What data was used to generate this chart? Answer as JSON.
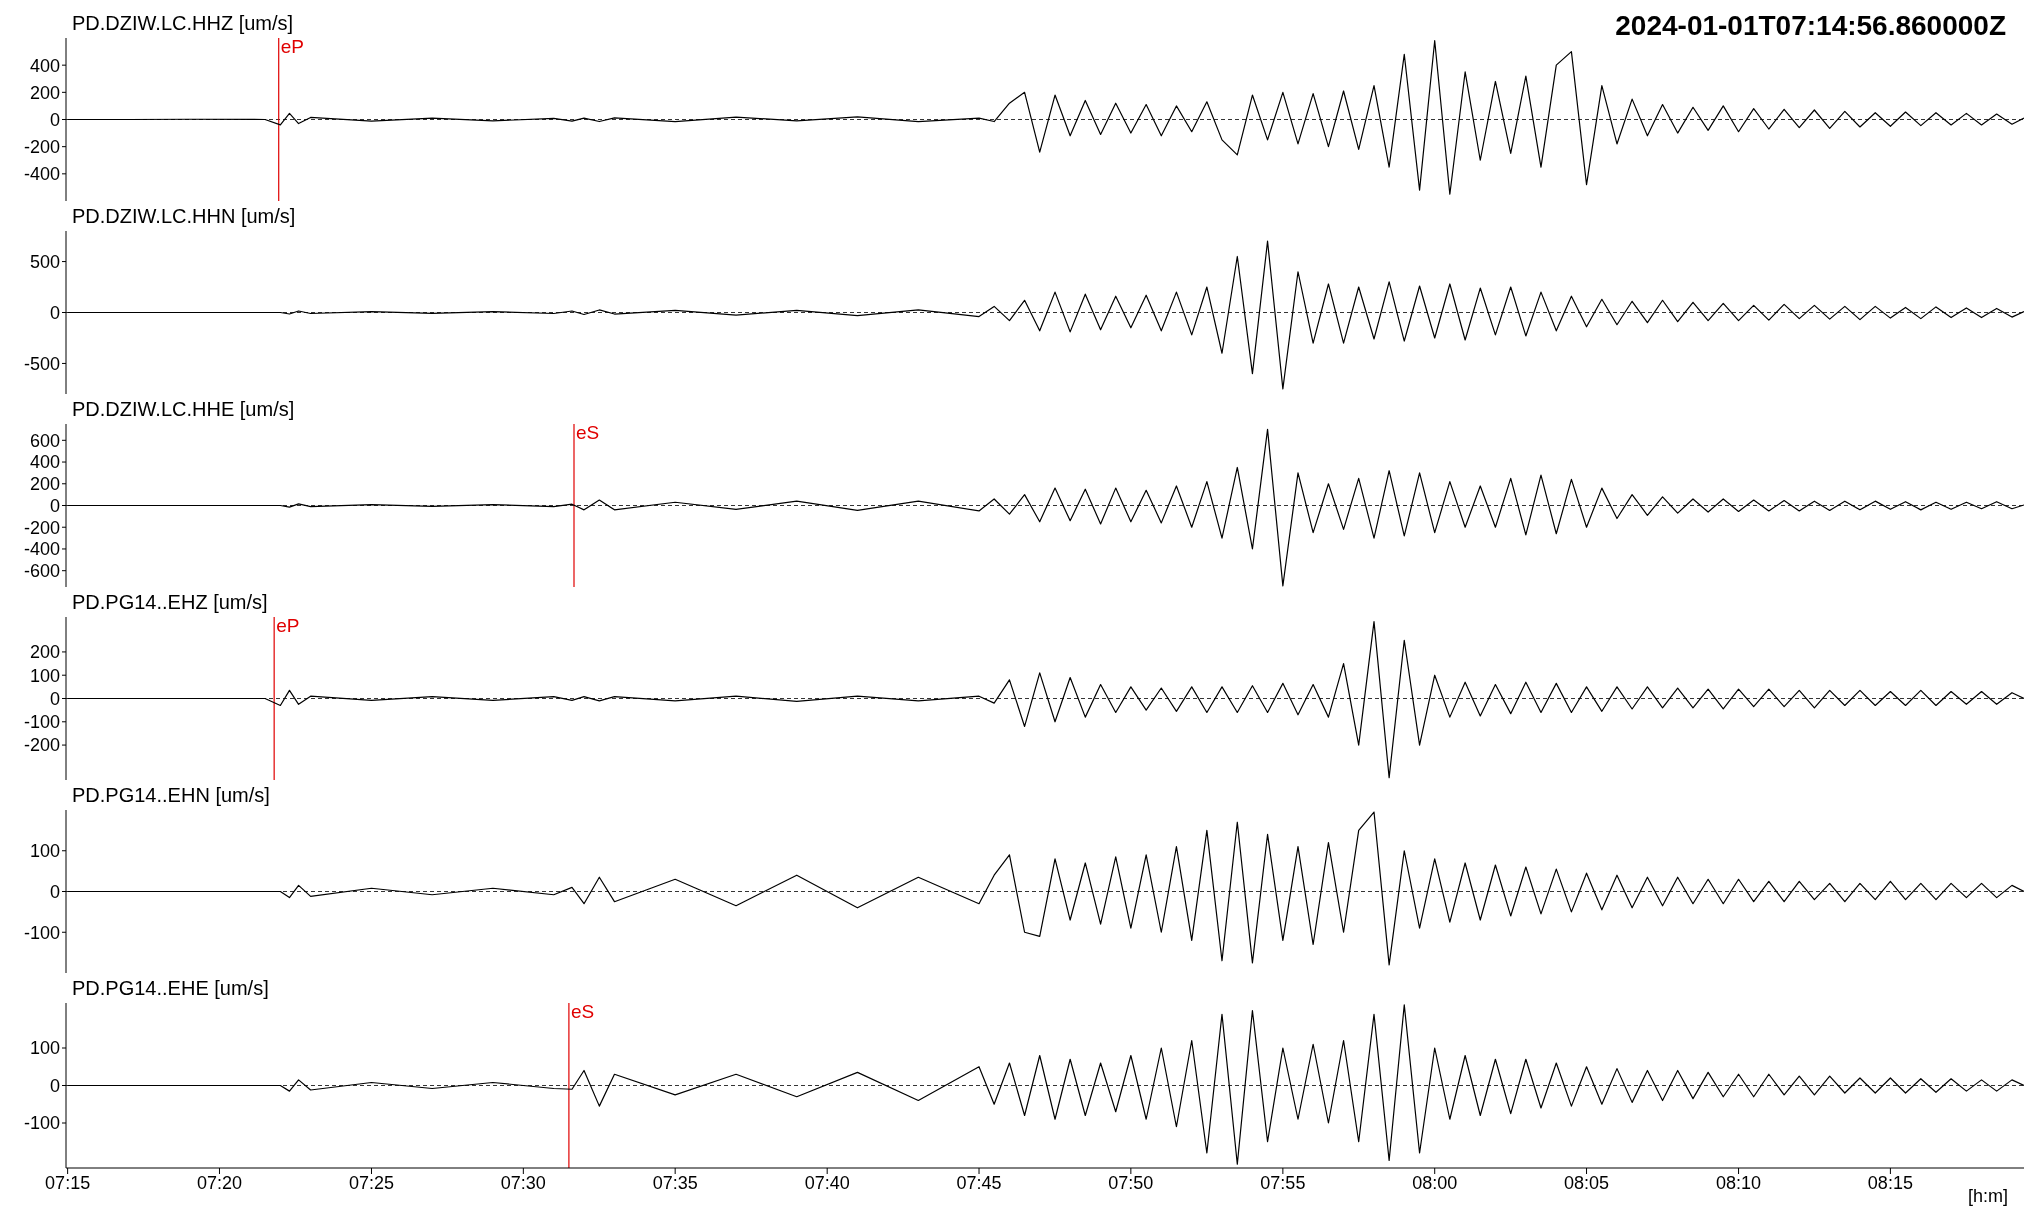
{
  "chart_data": [
    {
      "type": "line",
      "title": "PD.DZIW.LC.HHZ [um/s]",
      "annotations": [
        "2024-01-01T07:14:56.860000Z"
      ],
      "tick_labels": "y",
      "xlim": [
        7.2491,
        8.3233
      ],
      "ylim": [
        -600,
        600
      ],
      "yticks": [
        -400,
        -200,
        0,
        200,
        400
      ],
      "ref_lines": [
        {
          "axis": "y",
          "value": 0,
          "color": "#000000",
          "line_style": "dashed"
        },
        {
          "axis": "x",
          "value": 7.3658,
          "label": "eP",
          "color": "#e00000"
        }
      ],
      "x": [
        7.25,
        7.2833,
        7.3167,
        7.3583,
        7.3667,
        7.3717,
        7.3767,
        7.3833,
        7.4167,
        7.45,
        7.4833,
        7.5167,
        7.5267,
        7.5333,
        7.5417,
        7.55,
        7.5833,
        7.6167,
        7.65,
        7.6833,
        7.7167,
        7.75,
        7.7583,
        7.7667,
        7.775,
        7.7833,
        7.7917,
        7.8,
        7.8083,
        7.8167,
        7.825,
        7.8333,
        7.8417,
        7.85,
        7.8583,
        7.8667,
        7.875,
        7.8833,
        7.8917,
        7.9,
        7.9083,
        7.9167,
        7.925,
        7.9333,
        7.9417,
        7.95,
        7.9583,
        7.9667,
        7.975,
        7.9833,
        7.9917,
        8.0,
        8.0083,
        8.0167,
        8.025,
        8.0333,
        8.0417,
        8.05,
        8.0583,
        8.0667,
        8.075,
        8.0833,
        8.0917,
        8.1,
        8.1083,
        8.1167,
        8.125,
        8.1333,
        8.1417,
        8.15,
        8.1583,
        8.1667,
        8.175,
        8.1833,
        8.1917,
        8.2,
        8.2083,
        8.2167,
        8.225,
        8.2333,
        8.2417,
        8.25,
        8.2583,
        8.2667,
        8.275,
        8.2833,
        8.2917,
        8.3,
        8.3083,
        8.3167,
        8.3233
      ],
      "series": [
        {
          "color": "#000000",
          "values": [
            0,
            0,
            2,
            0,
            -40,
            45,
            -30,
            15,
            -12,
            10,
            -10,
            8,
            -12,
            10,
            -15,
            12,
            -15,
            18,
            -10,
            20,
            -15,
            10,
            -15,
            120,
            200,
            -240,
            180,
            -120,
            140,
            -110,
            120,
            -100,
            110,
            -120,
            100,
            -90,
            130,
            -150,
            -260,
            180,
            -150,
            200,
            -180,
            190,
            -200,
            210,
            -220,
            250,
            -350,
            480,
            -520,
            580,
            -550,
            350,
            -300,
            280,
            -250,
            320,
            -350,
            400,
            500,
            -480,
            250,
            -180,
            150,
            -120,
            110,
            -100,
            90,
            -80,
            100,
            -90,
            80,
            -70,
            75,
            -60,
            70,
            -65,
            60,
            -55,
            50,
            -50,
            55,
            -45,
            50,
            -40,
            45,
            -40,
            40,
            -35,
            10
          ]
        }
      ]
    },
    {
      "type": "line",
      "title": "PD.DZIW.LC.HHN [um/s]",
      "tick_labels": "y",
      "xlim": [
        7.2491,
        8.3233
      ],
      "ylim": [
        -800,
        800
      ],
      "yticks": [
        -500,
        0,
        500
      ],
      "ref_lines": [
        {
          "axis": "y",
          "value": 0,
          "color": "#000000",
          "line_style": "dashed"
        }
      ],
      "x": [
        7.25,
        7.2833,
        7.3167,
        7.3583,
        7.3667,
        7.3717,
        7.3767,
        7.3833,
        7.4167,
        7.45,
        7.4833,
        7.5167,
        7.5267,
        7.5333,
        7.5417,
        7.55,
        7.5833,
        7.6167,
        7.65,
        7.6833,
        7.7167,
        7.75,
        7.7583,
        7.7667,
        7.775,
        7.7833,
        7.7917,
        7.8,
        7.8083,
        7.8167,
        7.825,
        7.8333,
        7.8417,
        7.85,
        7.8583,
        7.8667,
        7.875,
        7.8833,
        7.8917,
        7.9,
        7.9083,
        7.9167,
        7.925,
        7.9333,
        7.9417,
        7.95,
        7.9583,
        7.9667,
        7.975,
        7.9833,
        7.9917,
        8.0,
        8.0083,
        8.0167,
        8.025,
        8.0333,
        8.0417,
        8.05,
        8.0583,
        8.0667,
        8.075,
        8.0833,
        8.0917,
        8.1,
        8.1083,
        8.1167,
        8.125,
        8.1333,
        8.1417,
        8.15,
        8.1583,
        8.1667,
        8.175,
        8.1833,
        8.1917,
        8.2,
        8.2083,
        8.2167,
        8.225,
        8.2333,
        8.2417,
        8.25,
        8.2583,
        8.2667,
        8.275,
        8.2833,
        8.2917,
        8.3,
        8.3083,
        8.3167,
        8.3233
      ],
      "series": [
        {
          "color": "#000000",
          "values": [
            0,
            0,
            0,
            0,
            0,
            -15,
            15,
            -10,
            8,
            -8,
            8,
            -10,
            15,
            -20,
            25,
            -15,
            20,
            -25,
            20,
            -30,
            25,
            -40,
            60,
            -80,
            120,
            -180,
            200,
            -190,
            180,
            -170,
            160,
            -150,
            170,
            -180,
            200,
            -220,
            250,
            -400,
            550,
            -600,
            700,
            -750,
            400,
            -300,
            280,
            -300,
            250,
            -260,
            300,
            -280,
            260,
            -250,
            280,
            -270,
            240,
            -220,
            250,
            -230,
            200,
            -180,
            160,
            -140,
            130,
            -120,
            110,
            -100,
            120,
            -90,
            100,
            -80,
            90,
            -80,
            70,
            -75,
            80,
            -60,
            70,
            -65,
            60,
            -70,
            60,
            -55,
            50,
            -60,
            55,
            -50,
            45,
            -50,
            40,
            -45,
            10
          ]
        }
      ]
    },
    {
      "type": "line",
      "title": "PD.DZIW.LC.HHE [um/s]",
      "tick_labels": "y",
      "xlim": [
        7.2491,
        8.3233
      ],
      "ylim": [
        -750,
        750
      ],
      "yticks": [
        -600,
        -400,
        -200,
        0,
        200,
        400,
        600
      ],
      "ref_lines": [
        {
          "axis": "y",
          "value": 0,
          "color": "#000000",
          "line_style": "dashed"
        },
        {
          "axis": "x",
          "value": 7.5278,
          "label": "eS",
          "color": "#e00000"
        }
      ],
      "x": [
        7.25,
        7.2833,
        7.3167,
        7.3583,
        7.3667,
        7.3717,
        7.3767,
        7.3833,
        7.4167,
        7.45,
        7.4833,
        7.5167,
        7.5267,
        7.5333,
        7.5417,
        7.55,
        7.5833,
        7.6167,
        7.65,
        7.6833,
        7.7167,
        7.75,
        7.7583,
        7.7667,
        7.775,
        7.7833,
        7.7917,
        7.8,
        7.8083,
        7.8167,
        7.825,
        7.8333,
        7.8417,
        7.85,
        7.8583,
        7.8667,
        7.875,
        7.8833,
        7.8917,
        7.9,
        7.9083,
        7.9167,
        7.925,
        7.9333,
        7.9417,
        7.95,
        7.9583,
        7.9667,
        7.975,
        7.9833,
        7.9917,
        8.0,
        8.0083,
        8.0167,
        8.025,
        8.0333,
        8.0417,
        8.05,
        8.0583,
        8.0667,
        8.075,
        8.0833,
        8.0917,
        8.1,
        8.1083,
        8.1167,
        8.125,
        8.1333,
        8.1417,
        8.15,
        8.1583,
        8.1667,
        8.175,
        8.1833,
        8.1917,
        8.2,
        8.2083,
        8.2167,
        8.225,
        8.2333,
        8.2417,
        8.25,
        8.2583,
        8.2667,
        8.275,
        8.2833,
        8.2917,
        8.3,
        8.3083,
        8.3167,
        8.3233
      ],
      "series": [
        {
          "color": "#000000",
          "values": [
            0,
            0,
            0,
            0,
            0,
            -15,
            15,
            -10,
            8,
            -8,
            8,
            -10,
            12,
            -40,
            50,
            -40,
            30,
            -35,
            40,
            -45,
            40,
            -50,
            60,
            -80,
            100,
            -150,
            160,
            -140,
            150,
            -170,
            160,
            -150,
            140,
            -160,
            180,
            -200,
            220,
            -300,
            350,
            -400,
            700,
            -740,
            300,
            -250,
            200,
            -220,
            250,
            -300,
            320,
            -280,
            300,
            -250,
            220,
            -200,
            180,
            -200,
            250,
            -270,
            280,
            -260,
            240,
            -200,
            160,
            -120,
            100,
            -90,
            80,
            -70,
            60,
            -60,
            60,
            -55,
            50,
            -50,
            45,
            -50,
            40,
            -45,
            40,
            -40,
            40,
            -35,
            35,
            -40,
            30,
            -35,
            30,
            -30,
            35,
            -30,
            5
          ]
        }
      ]
    },
    {
      "type": "line",
      "title": "PD.PG14..EHZ [um/s]",
      "tick_labels": "y",
      "xlim": [
        7.2491,
        8.3233
      ],
      "ylim": [
        -350,
        350
      ],
      "yticks": [
        -200,
        -100,
        0,
        100,
        200
      ],
      "ref_lines": [
        {
          "axis": "y",
          "value": 0,
          "color": "#000000",
          "line_style": "dashed"
        },
        {
          "axis": "x",
          "value": 7.3633,
          "label": "eP",
          "color": "#e00000"
        }
      ],
      "x": [
        7.25,
        7.2833,
        7.3167,
        7.3583,
        7.3667,
        7.3717,
        7.3767,
        7.3833,
        7.4167,
        7.45,
        7.4833,
        7.5167,
        7.5267,
        7.5333,
        7.5417,
        7.55,
        7.5833,
        7.6167,
        7.65,
        7.6833,
        7.7167,
        7.75,
        7.7583,
        7.7667,
        7.775,
        7.7833,
        7.7917,
        7.8,
        7.8083,
        7.8167,
        7.825,
        7.8333,
        7.8417,
        7.85,
        7.8583,
        7.8667,
        7.875,
        7.8833,
        7.8917,
        7.9,
        7.9083,
        7.9167,
        7.925,
        7.9333,
        7.9417,
        7.95,
        7.9583,
        7.9667,
        7.975,
        7.9833,
        7.9917,
        8.0,
        8.0083,
        8.0167,
        8.025,
        8.0333,
        8.0417,
        8.05,
        8.0583,
        8.0667,
        8.075,
        8.0833,
        8.0917,
        8.1,
        8.1083,
        8.1167,
        8.125,
        8.1333,
        8.1417,
        8.15,
        8.1583,
        8.1667,
        8.175,
        8.1833,
        8.1917,
        8.2,
        8.2083,
        8.2167,
        8.225,
        8.2333,
        8.2417,
        8.25,
        8.2583,
        8.2667,
        8.275,
        8.2833,
        8.2917,
        8.3,
        8.3083,
        8.3167,
        8.3233
      ],
      "series": [
        {
          "color": "#000000",
          "values": [
            0,
            0,
            0,
            0,
            -30,
            35,
            -25,
            10,
            -8,
            8,
            -8,
            8,
            -8,
            8,
            -10,
            8,
            -10,
            10,
            -12,
            10,
            -10,
            10,
            -20,
            80,
            -120,
            110,
            -100,
            90,
            -80,
            60,
            -60,
            50,
            -50,
            45,
            -55,
            50,
            -60,
            50,
            -60,
            55,
            -60,
            65,
            -70,
            60,
            -80,
            150,
            -200,
            330,
            -340,
            250,
            -200,
            100,
            -80,
            70,
            -75,
            60,
            -65,
            70,
            -60,
            65,
            -60,
            50,
            -55,
            50,
            -45,
            50,
            -40,
            45,
            -40,
            40,
            -45,
            40,
            -35,
            40,
            -35,
            35,
            -40,
            35,
            -30,
            35,
            -30,
            30,
            -30,
            35,
            -30,
            30,
            -25,
            30,
            -25,
            25,
            0
          ]
        }
      ]
    },
    {
      "type": "line",
      "title": "PD.PG14..EHN [um/s]",
      "tick_labels": "y",
      "xlim": [
        7.2491,
        8.3233
      ],
      "ylim": [
        -200,
        200
      ],
      "yticks": [
        -100,
        0,
        100
      ],
      "ref_lines": [
        {
          "axis": "y",
          "value": 0,
          "color": "#000000",
          "line_style": "dashed"
        }
      ],
      "x": [
        7.25,
        7.2833,
        7.3167,
        7.3583,
        7.3667,
        7.3717,
        7.3767,
        7.3833,
        7.4167,
        7.45,
        7.4833,
        7.5167,
        7.5267,
        7.5333,
        7.5417,
        7.55,
        7.5833,
        7.6167,
        7.65,
        7.6833,
        7.7167,
        7.75,
        7.7583,
        7.7667,
        7.775,
        7.7833,
        7.7917,
        7.8,
        7.8083,
        7.8167,
        7.825,
        7.8333,
        7.8417,
        7.85,
        7.8583,
        7.8667,
        7.875,
        7.8833,
        7.8917,
        7.9,
        7.9083,
        7.9167,
        7.925,
        7.9333,
        7.9417,
        7.95,
        7.9583,
        7.9667,
        7.975,
        7.9833,
        7.9917,
        8.0,
        8.0083,
        8.0167,
        8.025,
        8.0333,
        8.0417,
        8.05,
        8.0583,
        8.0667,
        8.075,
        8.0833,
        8.0917,
        8.1,
        8.1083,
        8.1167,
        8.125,
        8.1333,
        8.1417,
        8.15,
        8.1583,
        8.1667,
        8.175,
        8.1833,
        8.1917,
        8.2,
        8.2083,
        8.2167,
        8.225,
        8.2333,
        8.2417,
        8.25,
        8.2583,
        8.2667,
        8.275,
        8.2833,
        8.2917,
        8.3,
        8.3083,
        8.3167,
        8.3233
      ],
      "series": [
        {
          "color": "#000000",
          "values": [
            0,
            0,
            0,
            0,
            0,
            -15,
            15,
            -12,
            8,
            -8,
            8,
            -8,
            10,
            -30,
            35,
            -25,
            30,
            -35,
            40,
            -40,
            35,
            -30,
            40,
            90,
            -100,
            -110,
            80,
            -70,
            70,
            -80,
            85,
            -90,
            90,
            -100,
            110,
            -120,
            150,
            -170,
            170,
            -175,
            140,
            -120,
            110,
            -130,
            120,
            -100,
            150,
            195,
            -180,
            100,
            -90,
            80,
            -75,
            70,
            -70,
            65,
            -60,
            60,
            -55,
            55,
            -50,
            45,
            -45,
            40,
            -40,
            35,
            -35,
            35,
            -30,
            30,
            -30,
            30,
            -25,
            25,
            -25,
            25,
            -20,
            20,
            -25,
            20,
            -20,
            25,
            -20,
            20,
            -20,
            20,
            -15,
            20,
            -15,
            15,
            0
          ]
        }
      ]
    },
    {
      "type": "line",
      "title": "PD.PG14..EHE [um/s]",
      "xlabel": "[h:m]",
      "xlim": [
        7.2491,
        8.3233
      ],
      "xticks": [
        {
          "value": 7.25,
          "label": "07:15"
        },
        {
          "value": 7.3333,
          "label": "07:20"
        },
        {
          "value": 7.4167,
          "label": "07:25"
        },
        {
          "value": 7.5,
          "label": "07:30"
        },
        {
          "value": 7.5833,
          "label": "07:35"
        },
        {
          "value": 7.6667,
          "label": "07:40"
        },
        {
          "value": 7.75,
          "label": "07:45"
        },
        {
          "value": 7.8333,
          "label": "07:50"
        },
        {
          "value": 7.9167,
          "label": "07:55"
        },
        {
          "value": 8.0,
          "label": "08:00"
        },
        {
          "value": 8.0833,
          "label": "08:05"
        },
        {
          "value": 8.1667,
          "label": "08:10"
        },
        {
          "value": 8.25,
          "label": "08:15"
        }
      ],
      "ylim": [
        -220,
        220
      ],
      "yticks": [
        -100,
        0,
        100
      ],
      "ref_lines": [
        {
          "axis": "y",
          "value": 0,
          "color": "#000000",
          "line_style": "dashed"
        },
        {
          "axis": "x",
          "value": 7.525,
          "label": "eS",
          "color": "#e00000"
        }
      ],
      "x": [
        7.25,
        7.2833,
        7.3167,
        7.3583,
        7.3667,
        7.3717,
        7.3767,
        7.3833,
        7.4167,
        7.45,
        7.4833,
        7.5167,
        7.5267,
        7.5333,
        7.5417,
        7.55,
        7.5833,
        7.6167,
        7.65,
        7.6833,
        7.7167,
        7.75,
        7.7583,
        7.7667,
        7.775,
        7.7833,
        7.7917,
        7.8,
        7.8083,
        7.8167,
        7.825,
        7.8333,
        7.8417,
        7.85,
        7.8583,
        7.8667,
        7.875,
        7.8833,
        7.8917,
        7.9,
        7.9083,
        7.9167,
        7.925,
        7.9333,
        7.9417,
        7.95,
        7.9583,
        7.9667,
        7.975,
        7.9833,
        7.9917,
        8.0,
        8.0083,
        8.0167,
        8.025,
        8.0333,
        8.0417,
        8.05,
        8.0583,
        8.0667,
        8.075,
        8.0833,
        8.0917,
        8.1,
        8.1083,
        8.1167,
        8.125,
        8.1333,
        8.1417,
        8.15,
        8.1583,
        8.1667,
        8.175,
        8.1833,
        8.1917,
        8.2,
        8.2083,
        8.2167,
        8.225,
        8.2333,
        8.2417,
        8.25,
        8.2583,
        8.2667,
        8.275,
        8.2833,
        8.2917,
        8.3,
        8.3083,
        8.3167,
        8.3233
      ],
      "series": [
        {
          "color": "#000000",
          "values": [
            0,
            0,
            0,
            0,
            0,
            -15,
            15,
            -12,
            8,
            -8,
            8,
            -8,
            -10,
            40,
            -55,
            30,
            -25,
            30,
            -30,
            35,
            -40,
            50,
            -50,
            60,
            -80,
            80,
            -90,
            70,
            -80,
            60,
            -70,
            80,
            -90,
            100,
            -110,
            120,
            -180,
            190,
            -210,
            200,
            -150,
            100,
            -90,
            110,
            -100,
            120,
            -150,
            190,
            -200,
            215,
            -180,
            100,
            -90,
            80,
            -80,
            70,
            -75,
            70,
            -60,
            60,
            -55,
            50,
            -50,
            45,
            -45,
            40,
            -40,
            40,
            -35,
            35,
            -30,
            30,
            -30,
            30,
            -25,
            25,
            -25,
            25,
            -20,
            20,
            -20,
            20,
            -20,
            18,
            -18,
            18,
            -15,
            15,
            -15,
            15,
            0
          ]
        }
      ]
    }
  ]
}
